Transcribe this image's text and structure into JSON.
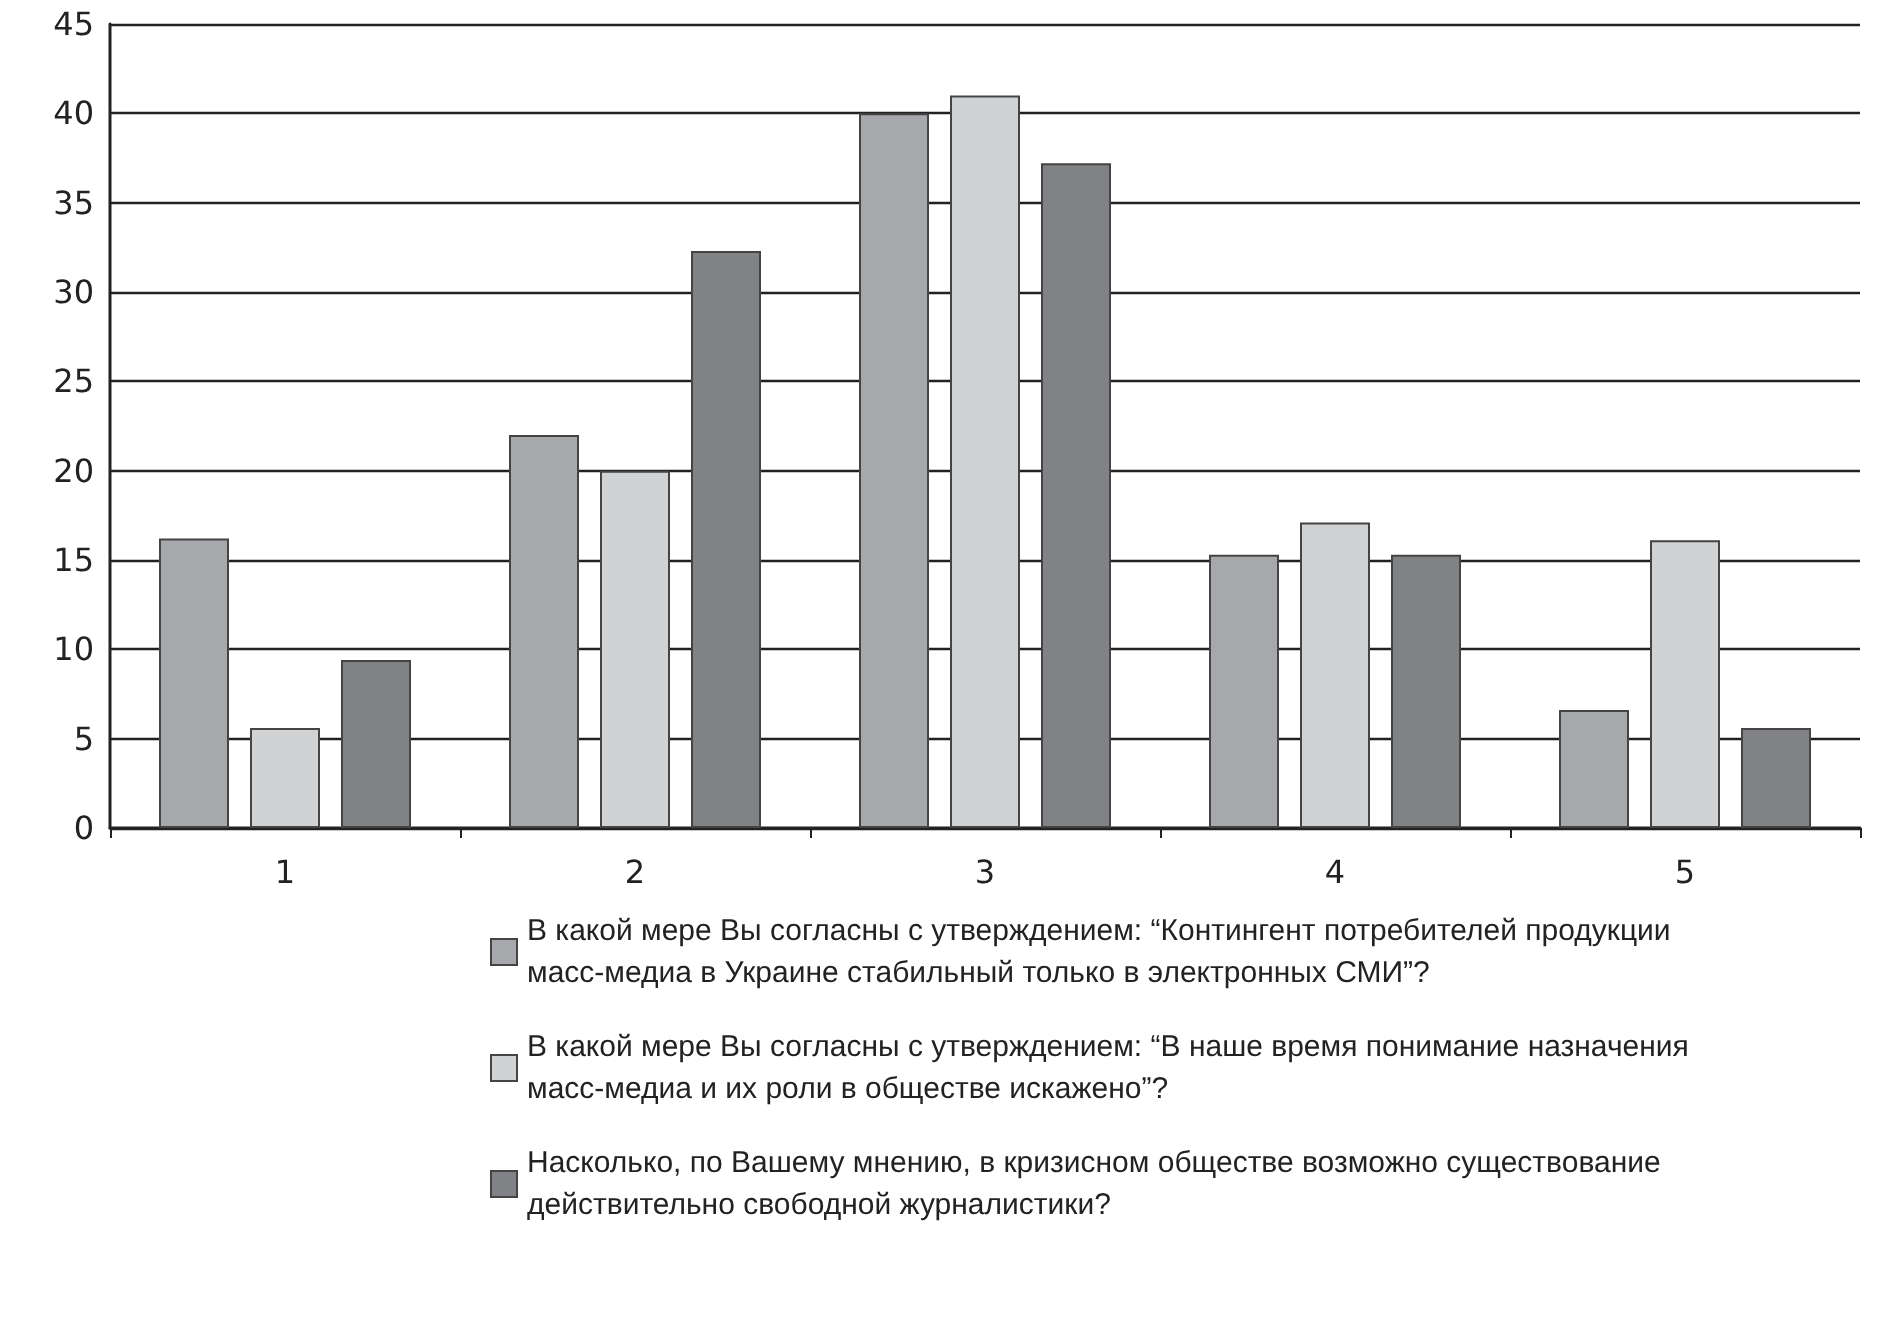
{
  "chart_data": {
    "type": "bar",
    "categories": [
      "1",
      "2",
      "3",
      "4",
      "5"
    ],
    "series": [
      {
        "name": "В какой мере Вы согласны с утверждением: “Контингент потребителей продукции масс-медиа в Украине стабильный только в электронных СМИ”?",
        "color": "#a7a8ab",
        "values": [
          16.2,
          22,
          40,
          15.3,
          6.6
        ]
      },
      {
        "name": "В какой мере Вы согласны с утверждением: “В наше время понимание назначения масс-медиа и их роли в обществе искажено”?",
        "color": "#d1d2d4",
        "values": [
          5.6,
          20,
          41,
          17.1,
          16.1
        ]
      },
      {
        "name": "Насколько, по Вашему мнению, в кризисном обществе возможно существование действительно свободной журналистики?",
        "color": "#818286",
        "values": [
          9.4,
          32.3,
          37.2,
          15.3,
          5.6
        ]
      }
    ],
    "ylim": [
      0,
      45
    ],
    "yticks": [
      0,
      5,
      10,
      15,
      20,
      25,
      30,
      35,
      40,
      45
    ],
    "grid": "y",
    "legend": "bottom"
  }
}
